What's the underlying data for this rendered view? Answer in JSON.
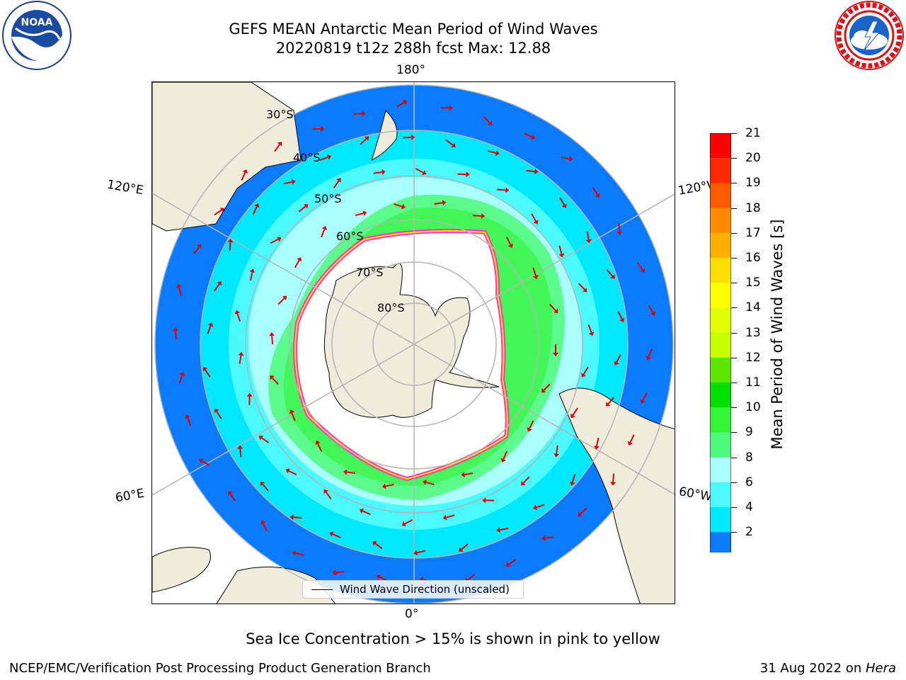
{
  "header": {
    "title_line1": "GEFS MEAN Antarctic Mean Period of Wind Waves",
    "title_line2": "20220819 t12z 288h fcst   Max: 12.88"
  },
  "logos": {
    "left": {
      "text": "NOAA",
      "ring_text": "NATIONAL OCEANIC AND ATMOSPHERIC ADMINISTRATION · U.S. DEPARTMENT OF COMMERCE",
      "icon": "noaa-logo"
    },
    "right": {
      "ring_text": "NATIONAL WEATHER SERVICE",
      "icon": "nws-logo"
    }
  },
  "map": {
    "projection": "south-polar-stereographic",
    "longitude_labels": {
      "top": "180°",
      "upper_left": "120°E",
      "upper_right": "120°W",
      "lower_left": "60°E",
      "lower_right": "60°W",
      "bottom": "0°"
    },
    "latitude_labels": [
      "30°S",
      "40°S",
      "50°S",
      "60°S",
      "70°S",
      "80°S"
    ],
    "legend_label": "Wind Wave Direction (unscaled)",
    "colors": {
      "land": "#efecdc",
      "ice_edge": "#ff33cc",
      "ice_inner": "#ffe200",
      "arrow": "#e00000",
      "grid": "#b4b4b4"
    }
  },
  "colorbar": {
    "label": "Mean Period of Wind Waves [s]",
    "ticks": [
      "2",
      "4",
      "6",
      "8",
      "9",
      "10",
      "11",
      "12",
      "13",
      "14",
      "15",
      "16",
      "17",
      "18",
      "19",
      "20",
      "21"
    ],
    "levels": [
      {
        "from": 2,
        "to": 4,
        "color": "#0a7aff"
      },
      {
        "from": 4,
        "to": 6,
        "color": "#00e8ff"
      },
      {
        "from": 6,
        "to": 8,
        "color": "#4afaff"
      },
      {
        "from": 8,
        "to": 9,
        "color": "#aaffff"
      },
      {
        "from": 9,
        "to": 10,
        "color": "#4dfa7a"
      },
      {
        "from": 10,
        "to": 11,
        "color": "#33f533"
      },
      {
        "from": 11,
        "to": 12,
        "color": "#00e000"
      },
      {
        "from": 12,
        "to": 13,
        "color": "#5ce600"
      },
      {
        "from": 13,
        "to": 14,
        "color": "#c8ff00"
      },
      {
        "from": 14,
        "to": 15,
        "color": "#e0ff00"
      },
      {
        "from": 15,
        "to": 16,
        "color": "#ffff00"
      },
      {
        "from": 16,
        "to": 17,
        "color": "#ffdf00"
      },
      {
        "from": 17,
        "to": 18,
        "color": "#ffaf00"
      },
      {
        "from": 18,
        "to": 19,
        "color": "#ff8c00"
      },
      {
        "from": 19,
        "to": 20,
        "color": "#ff5a00"
      },
      {
        "from": 20,
        "to": 21,
        "color": "#ff2800"
      },
      {
        "from": 21,
        "to": 21,
        "color": "#ff0000"
      }
    ],
    "under_color": "#0000e6"
  },
  "footer": {
    "note": "Sea Ice Concentration > 15% is shown in pink to yellow",
    "left": "NCEP/EMC/Verification Post Processing Product Generation Branch",
    "right_date": "31 Aug 2022 on ",
    "right_machine": "Hera"
  }
}
